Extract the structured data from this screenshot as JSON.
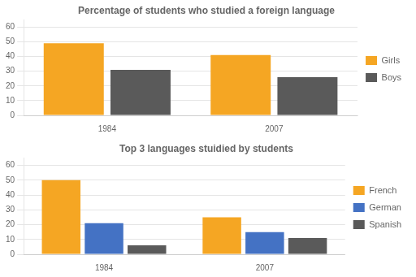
{
  "chart_data": [
    {
      "type": "bar",
      "title": "Percentage of students who studied a foreign language",
      "categories": [
        "1984",
        "2007"
      ],
      "series": [
        {
          "name": "Girls",
          "color": "#F5A623",
          "values": [
            49,
            41
          ]
        },
        {
          "name": "Boys",
          "color": "#5A5A5A",
          "values": [
            31,
            26
          ]
        }
      ],
      "ylim": [
        0,
        65
      ],
      "yticks": [
        0,
        10,
        20,
        30,
        40,
        50,
        60
      ],
      "grid": true,
      "legend": "right"
    },
    {
      "type": "bar",
      "title": "Top 3 languages stuidied by students",
      "categories": [
        "1984",
        "2007"
      ],
      "series": [
        {
          "name": "French",
          "color": "#F5A623",
          "values": [
            50,
            25
          ]
        },
        {
          "name": "German",
          "color": "#4472C4",
          "values": [
            21,
            15
          ]
        },
        {
          "name": "Spanish",
          "color": "#5A5A5A",
          "values": [
            6,
            11
          ]
        }
      ],
      "ylim": [
        0,
        65
      ],
      "yticks": [
        0,
        10,
        20,
        30,
        40,
        50,
        60
      ],
      "grid": true,
      "legend": "right"
    }
  ]
}
